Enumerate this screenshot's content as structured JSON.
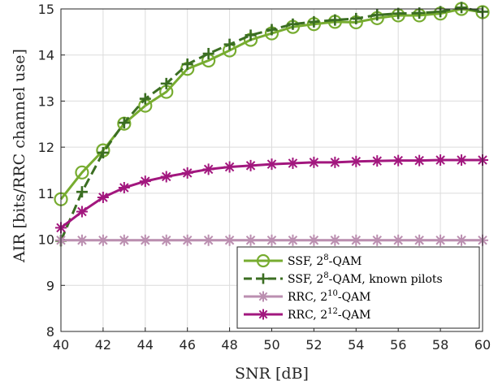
{
  "chart_data": {
    "type": "line",
    "xlabel": "SNR [dB]",
    "ylabel": "AIR [bits/RRC channel use]",
    "xlim": [
      40,
      60
    ],
    "ylim": [
      8,
      15
    ],
    "xticks": [
      40,
      42,
      44,
      46,
      48,
      50,
      52,
      54,
      56,
      58,
      60
    ],
    "yticks": [
      8,
      9,
      10,
      11,
      12,
      13,
      14,
      15
    ],
    "grid": true,
    "legend_position": "bottom-right",
    "x": [
      40,
      41,
      42,
      43,
      44,
      45,
      46,
      47,
      48,
      49,
      50,
      51,
      52,
      53,
      54,
      55,
      56,
      57,
      58,
      59,
      60
    ],
    "series": [
      {
        "name": "SSF, 2^8-QAM",
        "legend": {
          "pre": "SSF, 2",
          "sup": "8",
          "post": "-QAM"
        },
        "color": "#77ac30",
        "dash": "solid",
        "marker": "circle",
        "values": [
          10.87,
          11.45,
          11.93,
          12.51,
          12.9,
          13.2,
          13.7,
          13.88,
          14.1,
          14.33,
          14.47,
          14.61,
          14.67,
          14.72,
          14.71,
          14.8,
          14.86,
          14.86,
          14.9,
          15.0,
          14.93
        ]
      },
      {
        "name": "SSF, 2^8-QAM, known pilots",
        "legend": {
          "pre": "SSF, 2",
          "sup": "8",
          "post": "-QAM, known pilots"
        },
        "color": "#3b6e22",
        "dash": "dashed",
        "marker": "plus",
        "values": [
          9.97,
          11.03,
          11.88,
          12.53,
          13.05,
          13.38,
          13.8,
          14.03,
          14.23,
          14.43,
          14.55,
          14.67,
          14.72,
          14.76,
          14.79,
          14.87,
          14.9,
          14.91,
          14.94,
          15.03,
          14.94
        ]
      },
      {
        "name": "RRC, 2^10-QAM",
        "legend": {
          "pre": "RRC, 2",
          "sup": "10",
          "post": "-QAM"
        },
        "color": "#bb8fb0",
        "dash": "solid",
        "marker": "asterisk",
        "values": [
          9.98,
          9.98,
          9.98,
          9.98,
          9.98,
          9.98,
          9.98,
          9.98,
          9.98,
          9.98,
          9.98,
          9.98,
          9.98,
          9.98,
          9.98,
          9.98,
          9.98,
          9.98,
          9.98,
          9.98,
          9.98
        ]
      },
      {
        "name": "RRC, 2^12-QAM",
        "legend": {
          "pre": "RRC, 2",
          "sup": "12",
          "post": "-QAM"
        },
        "color": "#a2177e",
        "dash": "solid",
        "marker": "asterisk",
        "values": [
          10.25,
          10.6,
          10.91,
          11.12,
          11.26,
          11.36,
          11.44,
          11.52,
          11.57,
          11.6,
          11.63,
          11.65,
          11.67,
          11.67,
          11.69,
          11.7,
          11.71,
          11.71,
          11.72,
          11.72,
          11.72
        ]
      }
    ]
  }
}
